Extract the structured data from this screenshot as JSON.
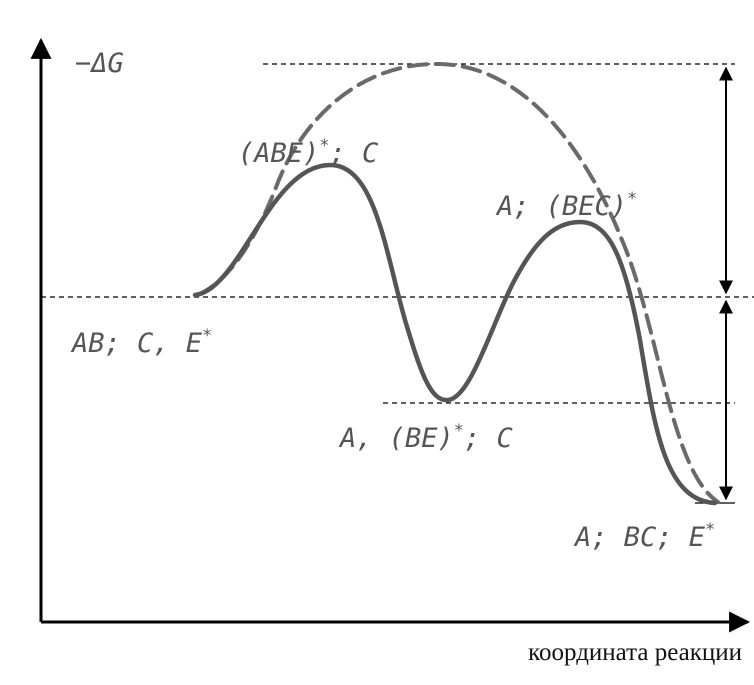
{
  "y_axis_label": "−ΔG",
  "x_axis_label": "координата реакции",
  "states": {
    "initial": {
      "main": "AB;  C,  E",
      "sup": "*"
    },
    "ts1": {
      "main": "(ABE)",
      "sup": "*",
      "tail": ";  C"
    },
    "intermediate": {
      "main": "A, (BE)",
      "sup": "*",
      "tail": "; C"
    },
    "ts2": {
      "main": "A;  (BEC)",
      "sup": "*"
    },
    "final": {
      "main": "A;  BC;  E",
      "sup": "*"
    }
  },
  "colors": {
    "axes": "#000000",
    "catalyzed_curve": "#555555",
    "uncatalyzed_curve": "#6a6a6a",
    "reference_lines": "#000000",
    "labels": "#555555"
  },
  "curves": {
    "catalyzed": {
      "style": "solid",
      "minima": 3,
      "maxima": 2
    },
    "uncatalyzed": {
      "style": "dashed",
      "minima": 2,
      "maxima": 1
    }
  },
  "arrows": [
    "double-headed energy difference (uncatalyzed barrier to initial level)",
    "double-headed energy difference (initial level to final level)"
  ]
}
